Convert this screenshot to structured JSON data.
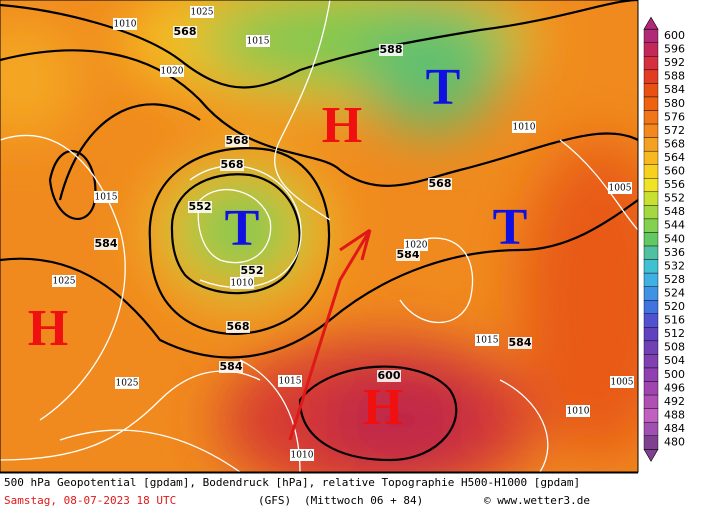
{
  "map": {
    "highs": [
      "H",
      "H",
      "H"
    ],
    "lows": [
      "T",
      "T",
      "T"
    ],
    "contour_labels": [
      552,
      552,
      568,
      568,
      568,
      568,
      584,
      584,
      584,
      584,
      588,
      568,
      600
    ],
    "isobar_labels": [
      1025,
      1010,
      1015,
      1020,
      1025,
      1025,
      1015,
      1010,
      1020,
      1015,
      1005,
      1010,
      1015,
      1010,
      1005,
      1010
    ]
  },
  "colorbar": {
    "levels": [
      600,
      596,
      592,
      588,
      584,
      580,
      576,
      572,
      568,
      564,
      560,
      556,
      552,
      548,
      544,
      540,
      536,
      532,
      528,
      524,
      520,
      516,
      512,
      508,
      504,
      500,
      496,
      492,
      488,
      484,
      480
    ],
    "colors": [
      "#b02878",
      "#c42858",
      "#d63040",
      "#e23c22",
      "#e85014",
      "#ee6212",
      "#f07618",
      "#f2881e",
      "#f4a020",
      "#f8b820",
      "#f8d020",
      "#f0e224",
      "#c8e030",
      "#a4d840",
      "#84d050",
      "#64c862",
      "#50c0a0",
      "#40c0d0",
      "#40b0e4",
      "#4092e4",
      "#4072e0",
      "#5052d0",
      "#6042c0",
      "#7040b4",
      "#8040b0",
      "#9040b0",
      "#a044b0",
      "#b050b4",
      "#c060c0",
      "#a050b0",
      "#804090"
    ]
  },
  "footer": {
    "title": "500 hPa Geopotential [gpdam], Bodendruck [hPa], relative Topographie H500-H1000 [gpdam]",
    "date": "Samstag, 08-07-2023  18 UTC",
    "model": "(GFS)",
    "run": "(Mittwoch 06 + 84)",
    "credit": "© www.wetter3.de"
  }
}
